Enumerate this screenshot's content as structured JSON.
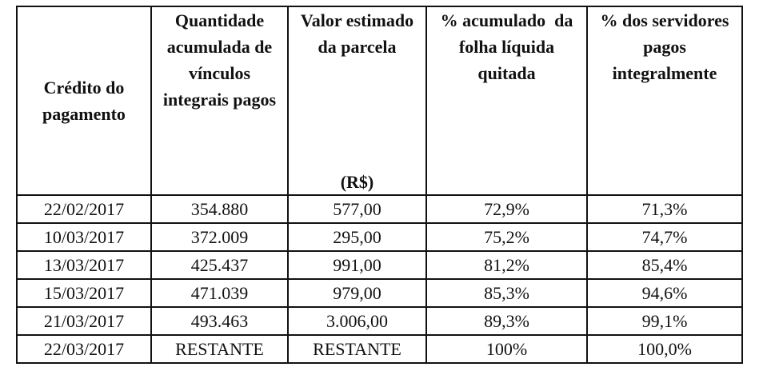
{
  "table": {
    "headers": [
      "Crédito do pagamento",
      "Quantidade acumulada de vínculos integrais pagos",
      "Valor estimado da parcela",
      "% acumulado  da folha líquida quitada",
      "% dos servidores pagos integralmente"
    ],
    "header_unit_col3": "(R$)",
    "rows": [
      [
        "22/02/2017",
        "354.880",
        "577,00",
        "72,9%",
        "71,3%"
      ],
      [
        "10/03/2017",
        "372.009",
        "295,00",
        "75,2%",
        "74,7%"
      ],
      [
        "13/03/2017",
        "425.437",
        "991,00",
        "81,2%",
        "85,4%"
      ],
      [
        "15/03/2017",
        "471.039",
        "979,00",
        "85,3%",
        "94,6%"
      ],
      [
        "21/03/2017",
        "493.463",
        "3.006,00",
        "89,3%",
        "99,1%"
      ],
      [
        "22/03/2017",
        "RESTANTE",
        "RESTANTE",
        "100%",
        "100,0%"
      ]
    ]
  }
}
